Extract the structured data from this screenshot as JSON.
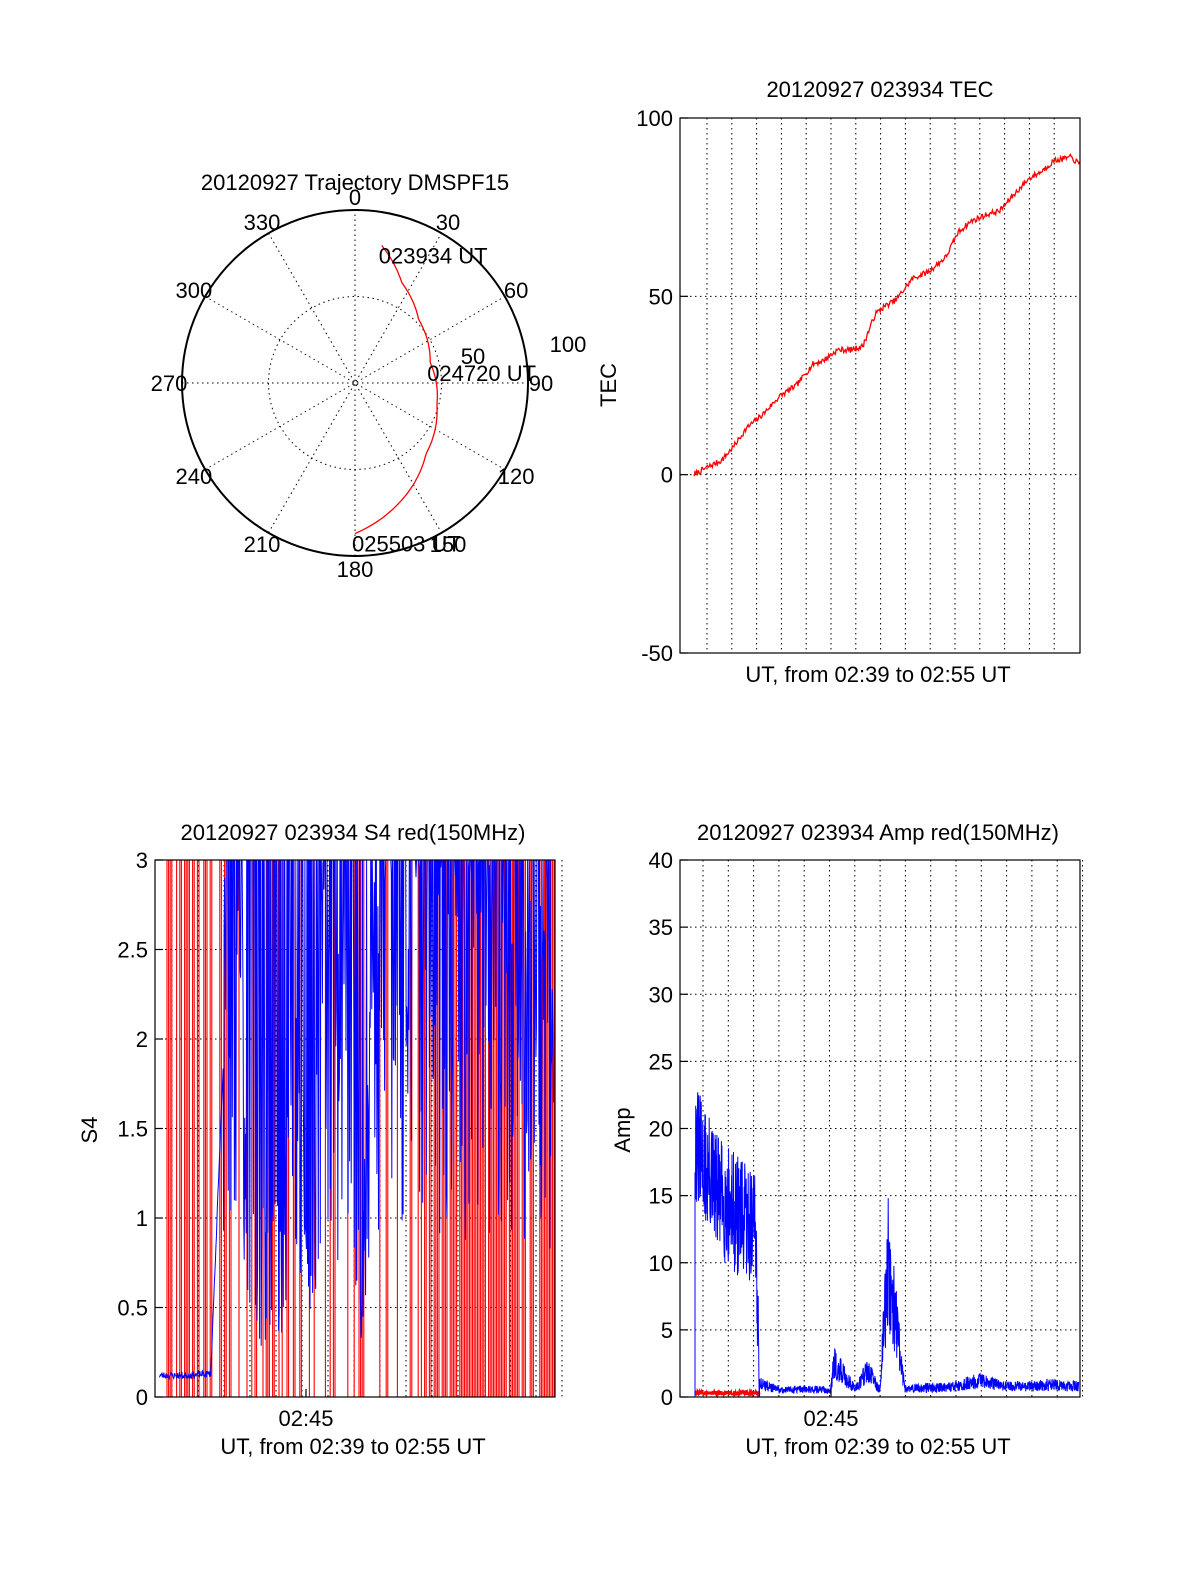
{
  "figure": {
    "polar": {
      "title": "20120927 Trajectory DMSPF15",
      "angle_labels": [
        "0",
        "30",
        "60",
        "90",
        "120",
        "150",
        "180",
        "210",
        "240",
        "270",
        "300",
        "330"
      ],
      "radial_labels": [
        "50",
        "100"
      ],
      "elevation_range": [
        0,
        100
      ],
      "time_labels": [
        {
          "text": "023934 UT",
          "az": 11,
          "r": 0.81
        },
        {
          "text": "024720 UT",
          "az": 75,
          "r": 0.45
        },
        {
          "text": "025503 UT",
          "az": 180,
          "r": 0.87
        }
      ],
      "trajectory": [
        [
          11,
          0.81
        ],
        [
          25,
          0.64
        ],
        [
          45,
          0.52
        ],
        [
          75,
          0.45
        ],
        [
          105,
          0.49
        ],
        [
          135,
          0.58
        ],
        [
          160,
          0.74
        ],
        [
          180,
          0.87
        ]
      ],
      "colors": {
        "trajectory": "#ff0000"
      }
    },
    "tec": {
      "title": "20120927 023934 TEC",
      "ylabel": "TEC",
      "xlabel": "UT, from 02:39 to 02:55 UT",
      "ylim": [
        -50,
        100
      ],
      "yticks": [
        "-50",
        "0",
        "50",
        "100"
      ]
    },
    "s4": {
      "title": "20120927 023934 S4 red(150MHz)",
      "ylabel": "S4",
      "xlabel": "UT, from 02:39 to 02:55 UT",
      "ylim": [
        0,
        3
      ],
      "yticks": [
        "0",
        "0.5",
        "1",
        "1.5",
        "2",
        "2.5",
        "3"
      ],
      "xtick_label": "02:45"
    },
    "amp": {
      "title": "20120927 023934 Amp red(150MHz)",
      "ylabel": "Amp",
      "xlabel": "UT, from 02:39 to 02:55 UT",
      "ylim": [
        0,
        40
      ],
      "yticks": [
        "0",
        "5",
        "10",
        "15",
        "20",
        "25",
        "30",
        "35",
        "40"
      ],
      "xtick_label": "02:45"
    }
  },
  "chart_data": [
    {
      "type": "line",
      "title": "20120927 023934 TEC",
      "xlabel": "UT, from 02:39 to 02:55 UT",
      "ylabel": "TEC",
      "ylim": [
        -50,
        100
      ],
      "grid": true,
      "series": [
        {
          "color": "#ff0000",
          "x": [
            "02:39:34",
            "02:40:05",
            "02:40:40",
            "02:41:10",
            "02:41:40",
            "02:42:20",
            "02:43:00",
            "02:43:40",
            "02:44:20",
            "02:44:45",
            "02:45:20",
            "02:45:50",
            "02:46:20",
            "02:46:50",
            "02:47:10",
            "02:47:40",
            "02:48:20",
            "02:49:00",
            "02:49:40",
            "02:50:10",
            "02:50:40",
            "02:51:20",
            "02:51:50",
            "02:52:20",
            "02:53:00",
            "02:53:30",
            "02:54:00",
            "02:54:40",
            "02:55:03"
          ],
          "values": [
            0,
            2,
            4,
            8,
            13,
            17,
            22,
            25,
            31,
            32,
            35,
            35,
            36,
            45,
            47,
            49,
            55,
            57,
            61,
            68,
            71,
            73,
            74,
            78,
            83,
            85,
            88,
            89,
            87
          ]
        }
      ]
    },
    {
      "type": "line",
      "title": "20120927 023934 S4 red(150MHz)",
      "xlabel": "UT, from 02:39 to 02:55 UT",
      "ylabel": "S4",
      "ylim": [
        0,
        3
      ],
      "grid": true,
      "series": [
        {
          "color": "#0000ff",
          "x": [
            "02:39:40",
            "02:40:40",
            "02:41:40",
            "02:42:20",
            "02:43:00",
            "02:43:30",
            "02:44:00",
            "02:44:30",
            "02:45:00",
            "02:45:30",
            "02:46:00",
            "02:46:30",
            "02:47:00",
            "02:47:30",
            "02:48:00",
            "02:48:30",
            "02:49:00",
            "02:49:30",
            "02:50:00",
            "02:50:30",
            "02:51:00",
            "02:51:30",
            "02:52:00",
            "02:52:30",
            "02:53:00",
            "02:53:30",
            "02:54:00",
            "02:54:30",
            "02:55:00"
          ],
          "values": [
            0.12,
            0.12,
            0.13,
            2.5,
            1.5,
            0.5,
            0.9,
            0.7,
            2.0,
            0.35,
            2.2,
            1.5,
            2.5,
            0.8,
            1.9,
            2.4,
            2.3,
            2.6,
            2.7,
            2.2,
            2.4,
            1.8,
            2.3,
            2.1,
            1.7,
            2.0,
            1.9,
            2.2,
            1.6
          ]
        }
      ]
    },
    {
      "type": "line",
      "title": "20120927 023934 Amp red(150MHz)",
      "xlabel": "UT, from 02:39 to 02:55 UT",
      "ylabel": "Amp",
      "ylim": [
        0,
        40
      ],
      "grid": true,
      "series": [
        {
          "color": "#0000ff",
          "x": [
            "02:39:34",
            "02:40:00",
            "02:40:30",
            "02:41:00",
            "02:41:30",
            "02:42:00",
            "02:42:10",
            "02:43:00",
            "02:44:00",
            "02:45:00",
            "02:45:10",
            "02:46:00",
            "02:46:30",
            "02:47:00",
            "02:47:20",
            "02:48:00",
            "02:49:00",
            "02:50:00",
            "02:51:00",
            "02:52:00",
            "02:53:00",
            "02:54:00",
            "02:55:00"
          ],
          "values": [
            19,
            17,
            15,
            14,
            13,
            13,
            1,
            0.5,
            0.6,
            0.5,
            2.5,
            0.6,
            2.0,
            0.5,
            10,
            0.6,
            0.7,
            0.8,
            1.2,
            0.8,
            0.8,
            0.9,
            0.8
          ]
        },
        {
          "color": "#ff0000",
          "x": [
            "02:39:34",
            "02:40:30",
            "02:41:30",
            "02:42:10"
          ],
          "values": [
            0.3,
            0.3,
            0.3,
            0.3
          ]
        }
      ]
    }
  ]
}
